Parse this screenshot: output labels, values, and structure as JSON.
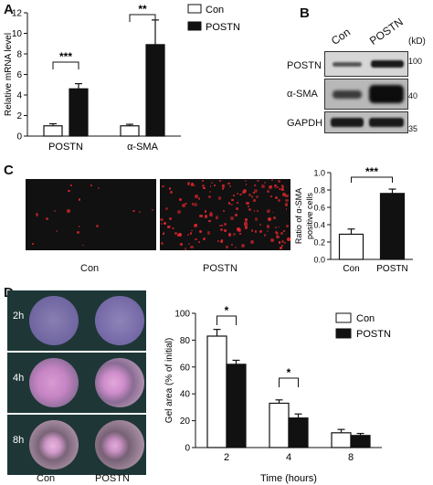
{
  "panels": {
    "A": {
      "label": "A",
      "legend": [
        "Con",
        "POSTN"
      ],
      "chart_data": {
        "type": "bar",
        "categories": [
          "POSTN",
          "α-SMA"
        ],
        "series": [
          {
            "name": "Con",
            "values": [
              1.0,
              1.0
            ],
            "errors": [
              0.2,
              0.15
            ]
          },
          {
            "name": "POSTN",
            "values": [
              4.6,
              8.9
            ],
            "errors": [
              0.5,
              2.4
            ]
          }
        ],
        "ylabel": "Relative mRNA level",
        "ylim": [
          0,
          12
        ],
        "yticks": [
          "0",
          "2",
          "4",
          "6",
          "8",
          "10",
          "12"
        ],
        "significance": [
          "***",
          "**"
        ]
      }
    },
    "B": {
      "label": "B",
      "columns": [
        "Con",
        "POSTN"
      ],
      "unit": "(kD)",
      "rows": [
        "POSTN",
        "α-SMA",
        "GAPDH"
      ],
      "markers": [
        "100",
        "40",
        "35"
      ]
    },
    "C": {
      "label": "C",
      "images": [
        "Con",
        "POSTN"
      ],
      "chart_data": {
        "type": "bar",
        "categories": [
          "Con",
          "POSTN"
        ],
        "values": [
          0.29,
          0.76
        ],
        "errors": [
          0.06,
          0.05
        ],
        "ylabel": "Ratio of α-SMA positive cells",
        "ylim": [
          0,
          1.0
        ],
        "yticks": [
          "0.0",
          "0.2",
          "0.4",
          "0.6",
          "0.8",
          "1.0"
        ],
        "significance": "***"
      }
    },
    "D": {
      "label": "D",
      "times": [
        "2h",
        "4h",
        "8h"
      ],
      "columns": [
        "Con",
        "POSTN"
      ],
      "chart_data": {
        "type": "bar",
        "categories": [
          "2",
          "4",
          "8"
        ],
        "series": [
          {
            "name": "Con",
            "values": [
              83,
              33,
              11
            ],
            "errors": [
              5,
              2.5,
              2.5
            ]
          },
          {
            "name": "POSTN",
            "values": [
              62,
              22,
              9
            ],
            "errors": [
              3,
              3,
              1.5
            ]
          }
        ],
        "xlabel": "Time (hours)",
        "ylabel": "Gel area (% of initial)",
        "ylim": [
          0,
          100
        ],
        "yticks": [
          "0",
          "20",
          "40",
          "60",
          "80",
          "100"
        ],
        "significance": [
          "*",
          "*",
          ""
        ]
      }
    }
  }
}
